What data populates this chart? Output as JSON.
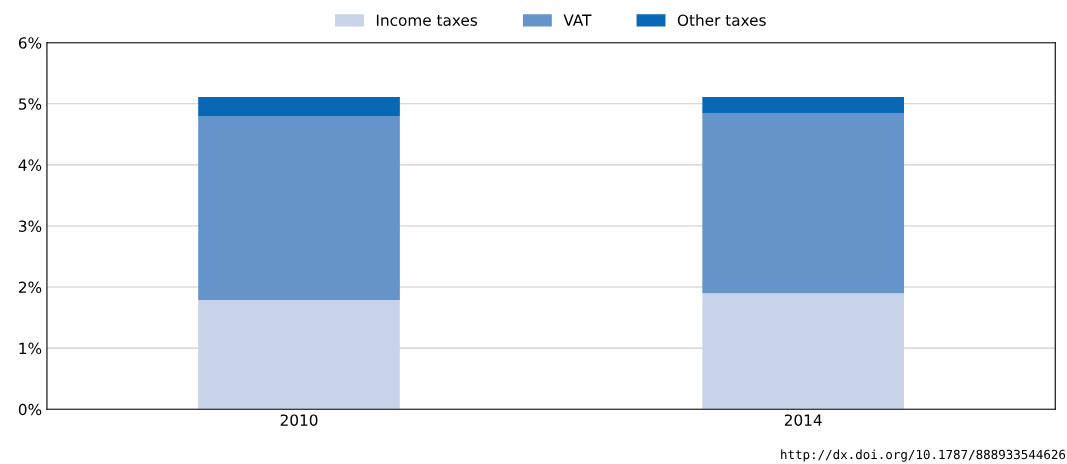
{
  "chart_data": {
    "type": "bar",
    "stacked": true,
    "categories": [
      "2010",
      "2014"
    ],
    "series": [
      {
        "name": "Income taxes",
        "color": "#c8d3ea",
        "values": [
          1.79,
          1.9
        ]
      },
      {
        "name": "VAT",
        "color": "#6594cb",
        "values": [
          3.0,
          2.94
        ]
      },
      {
        "name": "Other taxes",
        "color": "#0868b5",
        "values": [
          0.32,
          0.27
        ]
      }
    ],
    "ylim": [
      0,
      6
    ],
    "yticks": [
      {
        "value": 0,
        "label": "0%"
      },
      {
        "value": 1,
        "label": "1%"
      },
      {
        "value": 2,
        "label": "2%"
      },
      {
        "value": 3,
        "label": "3%"
      },
      {
        "value": 4,
        "label": "4%"
      },
      {
        "value": 5,
        "label": "5%"
      },
      {
        "value": 6,
        "label": "6%"
      }
    ],
    "grid": "y",
    "legend": "top",
    "annotations": [
      "http://dx.doi.org/10.1787/888933544626"
    ]
  }
}
